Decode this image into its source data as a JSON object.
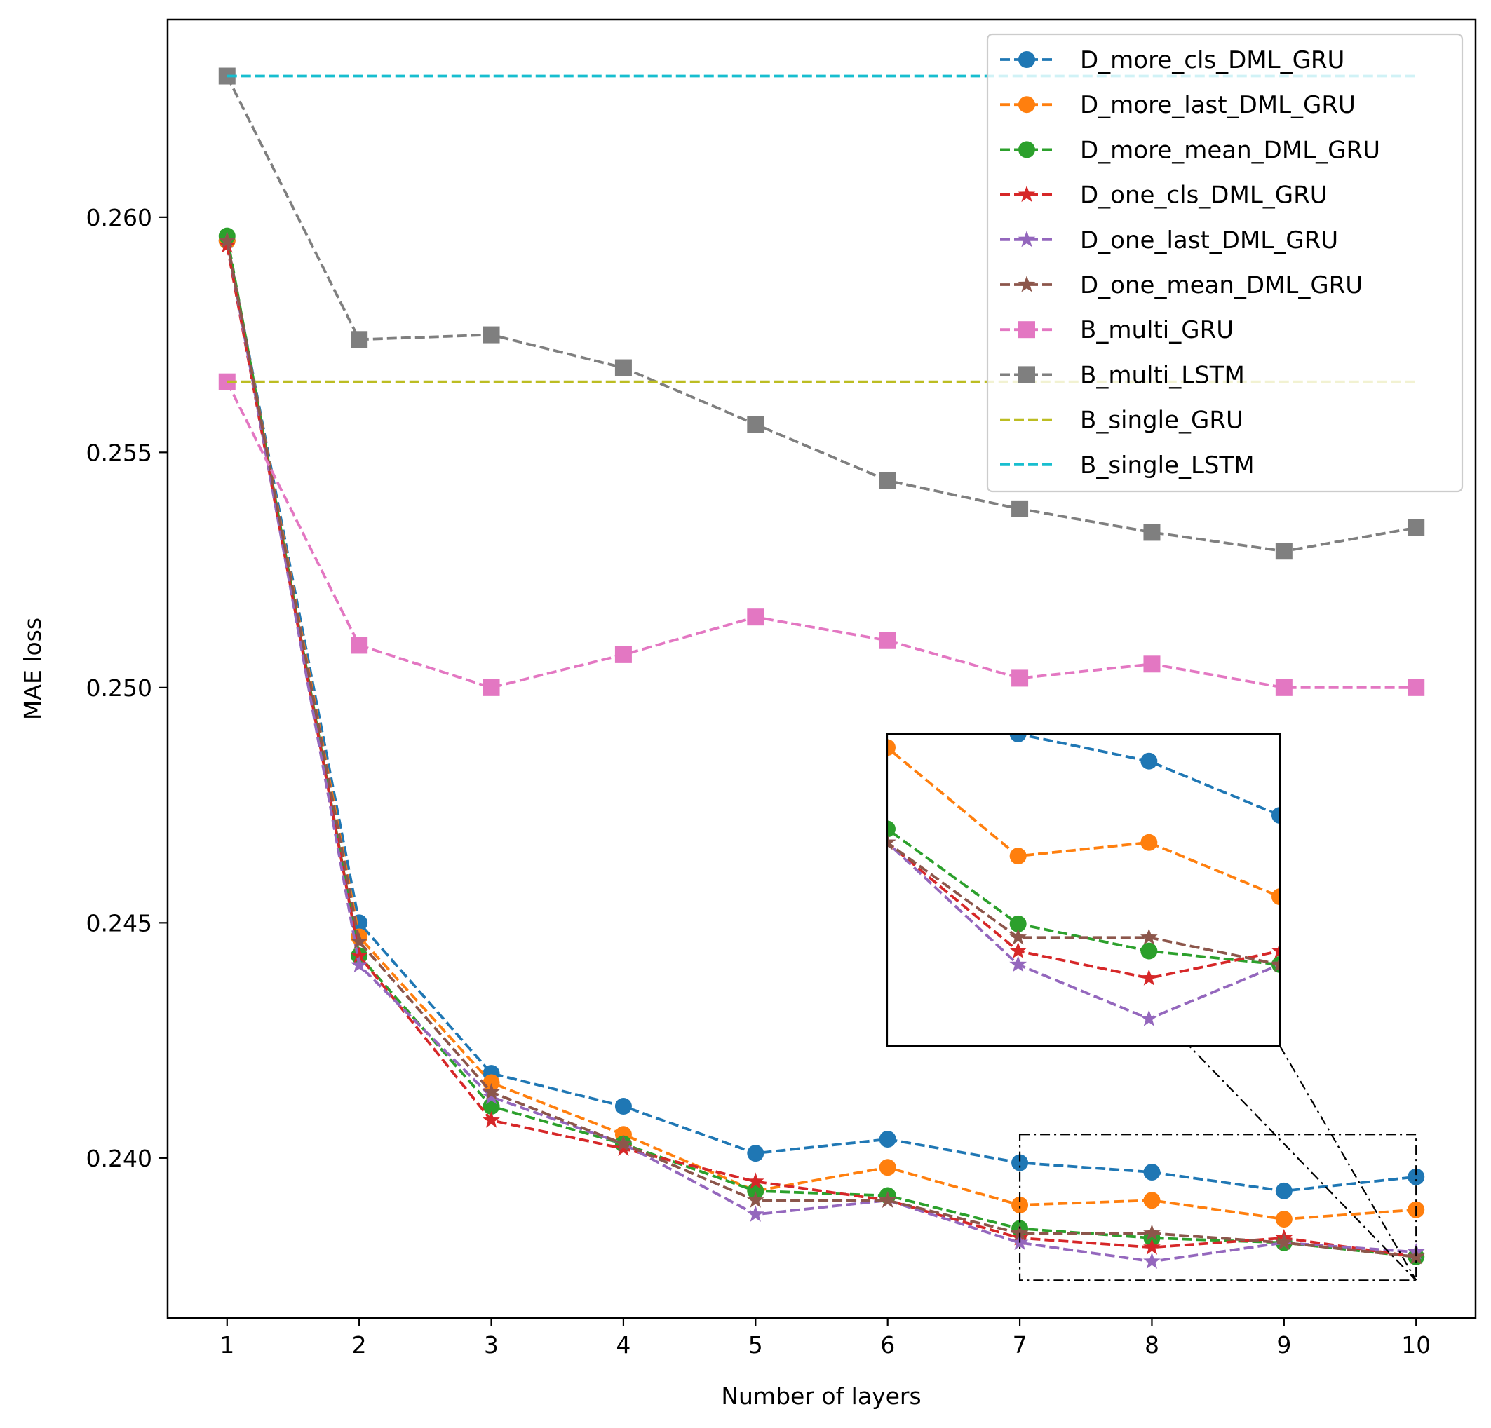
{
  "chart_data": {
    "type": "line",
    "title": "",
    "xlabel": "Number of layers",
    "ylabel": "MAE loss",
    "x": [
      1,
      2,
      3,
      4,
      5,
      6,
      7,
      8,
      9,
      10
    ],
    "xlim": [
      0.55,
      10.45
    ],
    "ylim": [
      0.2366,
      0.2642
    ],
    "xticks": [
      1,
      2,
      3,
      4,
      5,
      6,
      7,
      8,
      9,
      10
    ],
    "yticks": [
      0.24,
      0.245,
      0.25,
      0.255,
      0.26
    ],
    "ytick_labels": [
      "0.240",
      "0.245",
      "0.250",
      "0.255",
      "0.260"
    ],
    "legend_position": "top-right",
    "grid": false,
    "series": [
      {
        "name": "D_more_cls_DML_GRU",
        "color": "#1f77b4",
        "marker": "circle",
        "values": [
          0.2595,
          0.245,
          0.2418,
          0.2411,
          0.2401,
          0.2404,
          0.2399,
          0.2397,
          0.2393,
          0.2396
        ]
      },
      {
        "name": "D_more_last_DML_GRU",
        "color": "#ff7f0e",
        "marker": "circle",
        "values": [
          0.2595,
          0.2447,
          0.2416,
          0.2405,
          0.2393,
          0.2398,
          0.239,
          0.2391,
          0.2387,
          0.2389
        ]
      },
      {
        "name": "D_more_mean_DML_GRU",
        "color": "#2ca02c",
        "marker": "circle",
        "values": [
          0.2596,
          0.2443,
          0.2411,
          0.2403,
          0.2393,
          0.2392,
          0.2385,
          0.2383,
          0.2382,
          0.2379
        ]
      },
      {
        "name": "D_one_cls_DML_GRU",
        "color": "#d62728",
        "marker": "star",
        "values": [
          0.2594,
          0.2443,
          0.2408,
          0.2402,
          0.2395,
          0.2391,
          0.2383,
          0.2381,
          0.2383,
          0.2379
        ]
      },
      {
        "name": "D_one_last_DML_GRU",
        "color": "#9467bd",
        "marker": "star",
        "values": [
          0.2595,
          0.2441,
          0.2413,
          0.2403,
          0.2388,
          0.2391,
          0.2382,
          0.2378,
          0.2382,
          0.238
        ]
      },
      {
        "name": "D_one_mean_DML_GRU",
        "color": "#8c564b",
        "marker": "star",
        "values": [
          0.2595,
          0.2446,
          0.2414,
          0.2403,
          0.2391,
          0.2391,
          0.2384,
          0.2384,
          0.2382,
          0.2379
        ]
      },
      {
        "name": "B_multi_GRU",
        "color": "#e377c2",
        "marker": "square",
        "values": [
          0.2565,
          0.2509,
          0.25,
          0.2507,
          0.2515,
          0.251,
          0.2502,
          0.2505,
          0.25,
          0.25
        ]
      },
      {
        "name": "B_multi_LSTM",
        "color": "#7f7f7f",
        "marker": "square",
        "values": [
          0.263,
          0.2574,
          0.2575,
          0.2568,
          0.2556,
          0.2544,
          0.2538,
          0.2533,
          0.2529,
          0.2534
        ]
      },
      {
        "name": "B_single_GRU",
        "color": "#bcbd22",
        "marker": "none",
        "values": [
          0.2565,
          0.2565,
          0.2565,
          0.2565,
          0.2565,
          0.2565,
          0.2565,
          0.2565,
          0.2565,
          0.2565
        ]
      },
      {
        "name": "B_single_LSTM",
        "color": "#17becf",
        "marker": "none",
        "values": [
          0.263,
          0.263,
          0.263,
          0.263,
          0.263,
          0.263,
          0.263,
          0.263,
          0.263,
          0.263
        ]
      }
    ],
    "inset": {
      "zoom_xlim": [
        7,
        10
      ],
      "zoom_ylim": [
        0.2374,
        0.2405
      ],
      "inset_xlim": [
        6,
        9
      ],
      "inset_ylim": [
        0.2376,
        0.2399
      ],
      "connector_style": "dash-dot"
    }
  }
}
